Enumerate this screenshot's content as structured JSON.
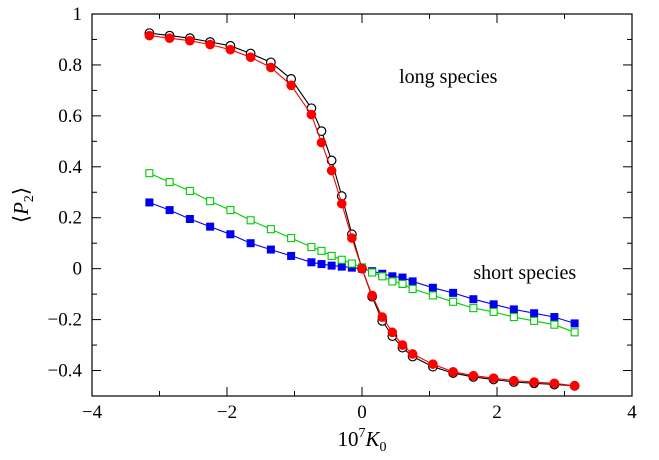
{
  "chart_data": {
    "type": "line",
    "xlabel": {
      "base": "10",
      "exp": "7",
      "var": "K",
      "sub": "0"
    },
    "ylabel": {
      "left": "⟨",
      "var": "P",
      "sub": "2",
      "right": "⟩"
    },
    "xlim": [
      -4,
      4
    ],
    "ylim": [
      -0.5,
      1.0
    ],
    "xticks": [
      -4,
      -2,
      0,
      2,
      4
    ],
    "xtick_labels": [
      "−4",
      "−2",
      "0",
      "2",
      "4"
    ],
    "yticks": [
      -0.4,
      -0.2,
      0,
      0.2,
      0.4,
      0.6,
      0.8,
      1
    ],
    "ytick_labels": [
      "−0.4",
      "−0.2",
      "0",
      "0.2",
      "0.4",
      "0.6",
      "0.8",
      "1"
    ],
    "grid": false,
    "annotations": [
      {
        "text": "long species",
        "x": 0.55,
        "y": 0.73
      },
      {
        "text": "short species",
        "x": 1.65,
        "y": -0.04
      }
    ],
    "series": [
      {
        "marker": "circle-open",
        "color": "#000000",
        "x": [
          -3.15,
          -2.85,
          -2.55,
          -2.25,
          -1.95,
          -1.65,
          -1.35,
          -1.05,
          -0.75,
          -0.6,
          -0.45,
          -0.3,
          -0.15,
          0.0,
          0.15,
          0.3,
          0.45,
          0.6,
          0.75,
          1.05,
          1.35,
          1.65,
          1.95,
          2.25,
          2.55,
          2.85,
          3.15
        ],
        "y": [
          0.925,
          0.915,
          0.905,
          0.89,
          0.875,
          0.845,
          0.81,
          0.745,
          0.63,
          0.54,
          0.425,
          0.285,
          0.135,
          0.0,
          -0.11,
          -0.205,
          -0.265,
          -0.31,
          -0.345,
          -0.385,
          -0.41,
          -0.425,
          -0.435,
          -0.445,
          -0.45,
          -0.455,
          -0.46
        ]
      },
      {
        "marker": "circle-filled",
        "color": "#ff0000",
        "x": [
          -3.15,
          -2.85,
          -2.55,
          -2.25,
          -1.95,
          -1.65,
          -1.35,
          -1.05,
          -0.75,
          -0.6,
          -0.45,
          -0.3,
          -0.15,
          0.0,
          0.15,
          0.3,
          0.45,
          0.6,
          0.75,
          1.05,
          1.35,
          1.65,
          1.95,
          2.25,
          2.55,
          2.85,
          3.15
        ],
        "y": [
          0.915,
          0.905,
          0.895,
          0.88,
          0.86,
          0.83,
          0.79,
          0.72,
          0.605,
          0.495,
          0.385,
          0.255,
          0.12,
          0.0,
          -0.105,
          -0.19,
          -0.25,
          -0.3,
          -0.335,
          -0.375,
          -0.405,
          -0.42,
          -0.43,
          -0.44,
          -0.445,
          -0.45,
          -0.46
        ]
      },
      {
        "marker": "square-open",
        "color": "#00cc00",
        "x": [
          -3.15,
          -2.85,
          -2.55,
          -2.25,
          -1.95,
          -1.65,
          -1.35,
          -1.05,
          -0.75,
          -0.6,
          -0.45,
          -0.3,
          -0.15,
          0.0,
          0.15,
          0.3,
          0.45,
          0.6,
          0.75,
          1.05,
          1.35,
          1.65,
          1.95,
          2.25,
          2.55,
          2.85,
          3.15
        ],
        "y": [
          0.375,
          0.34,
          0.305,
          0.265,
          0.23,
          0.19,
          0.155,
          0.12,
          0.085,
          0.07,
          0.05,
          0.035,
          0.02,
          0.005,
          -0.015,
          -0.03,
          -0.05,
          -0.06,
          -0.08,
          -0.105,
          -0.13,
          -0.155,
          -0.17,
          -0.19,
          -0.205,
          -0.22,
          -0.25
        ]
      },
      {
        "marker": "square-filled",
        "color": "#0000ee",
        "x": [
          -3.15,
          -2.85,
          -2.55,
          -2.25,
          -1.95,
          -1.65,
          -1.35,
          -1.05,
          -0.75,
          -0.6,
          -0.45,
          -0.3,
          -0.15,
          0.0,
          0.15,
          0.3,
          0.45,
          0.6,
          0.75,
          1.05,
          1.35,
          1.65,
          1.95,
          2.25,
          2.55,
          2.85,
          3.15
        ],
        "y": [
          0.26,
          0.23,
          0.195,
          0.165,
          0.135,
          0.1,
          0.075,
          0.05,
          0.025,
          0.018,
          0.012,
          0.008,
          0.004,
          0.0,
          -0.01,
          -0.02,
          -0.03,
          -0.035,
          -0.05,
          -0.075,
          -0.095,
          -0.12,
          -0.14,
          -0.16,
          -0.175,
          -0.19,
          -0.215
        ]
      }
    ]
  }
}
